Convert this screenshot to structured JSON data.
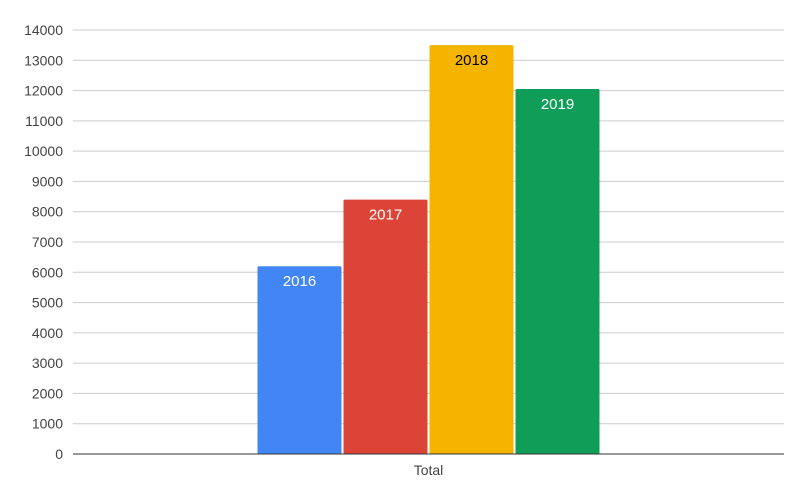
{
  "chart_data": {
    "type": "bar",
    "categories": [
      "Total"
    ],
    "series": [
      {
        "name": "2016",
        "values": [
          6200
        ],
        "color": "#4285f4",
        "label_color": "#ffffff"
      },
      {
        "name": "2017",
        "values": [
          8400
        ],
        "color": "#db4437",
        "label_color": "#ffffff"
      },
      {
        "name": "2018",
        "values": [
          13500
        ],
        "color": "#f4b400",
        "label_color": "#000000"
      },
      {
        "name": "2019",
        "values": [
          12050
        ],
        "color": "#0f9d58",
        "label_color": "#ffffff"
      }
    ],
    "ylim": [
      0,
      14000
    ],
    "yticks": [
      "0",
      "1000",
      "2000",
      "3000",
      "4000",
      "5000",
      "6000",
      "7000",
      "8000",
      "9000",
      "10000",
      "11000",
      "12000",
      "13000",
      "14000"
    ],
    "grid": true,
    "legend": "none",
    "data_labels": "series-name-inside-top"
  }
}
